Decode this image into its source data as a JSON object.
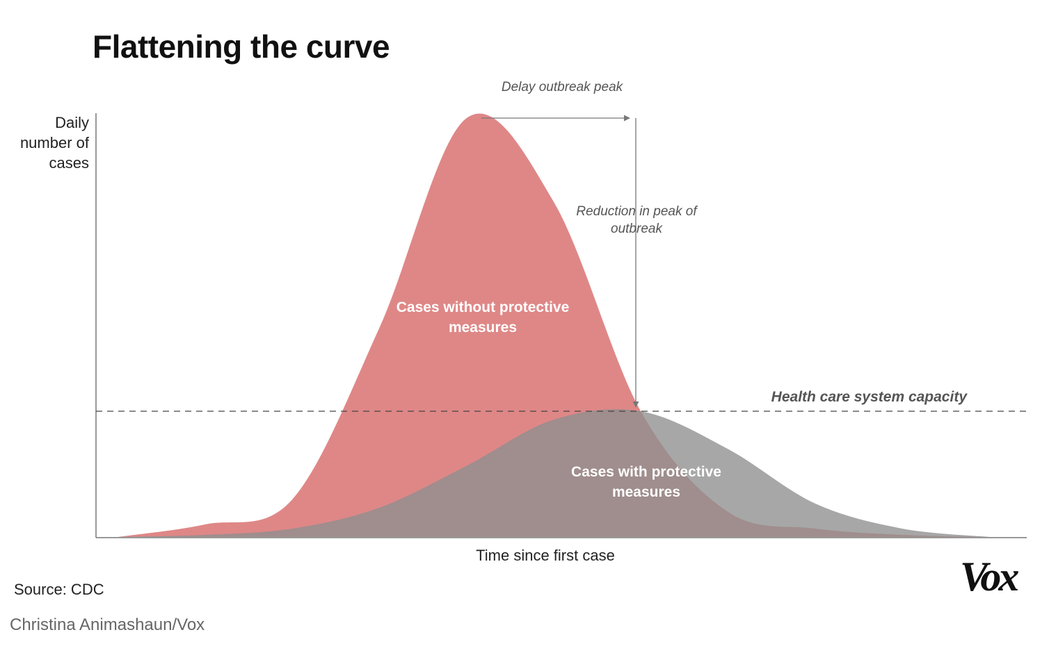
{
  "chart_data": {
    "type": "area",
    "title": "Flattening the curve",
    "xlabel": "Time since first case",
    "ylabel": "Daily number of cases",
    "x": [
      0,
      10,
      20,
      30,
      40,
      50,
      60,
      70,
      80,
      90,
      100
    ],
    "series": [
      {
        "name": "Cases without protective measures",
        "color": "#dd8181",
        "values": [
          0,
          3,
          9,
          50,
          100,
          80,
          30,
          6,
          2,
          0.5,
          0
        ]
      },
      {
        "name": "Cases with protective measures",
        "color": "#8e8e8e",
        "values": [
          0,
          0.5,
          2,
          7,
          17,
          28,
          30,
          21,
          8,
          2,
          0
        ]
      }
    ],
    "reference_lines": [
      {
        "label": "Health care system capacity",
        "y": 30,
        "style": "dashed"
      }
    ],
    "annotations": [
      {
        "text": "Delay outbreak peak",
        "kind": "horizontal-arrow"
      },
      {
        "text": "Reduction in peak of outbreak",
        "kind": "vertical-arrow"
      }
    ],
    "ylim": [
      0,
      100
    ],
    "xlim": [
      0,
      100
    ],
    "grid": false,
    "legend": "none (series labeled inside areas)"
  },
  "labels": {
    "title": "Flattening the curve",
    "ylabel_lines": [
      "Daily",
      "number of",
      "cases"
    ],
    "xlabel": "Time since first case",
    "delay": "Delay outbreak peak",
    "reduction": "Reduction in peak of outbreak",
    "capacity": "Health care system capacity",
    "without": "Cases without protective measures",
    "with": "Cases with protective measures"
  },
  "source": "Source: CDC",
  "credit": "Christina Animashaun/Vox",
  "logo": "Vox"
}
